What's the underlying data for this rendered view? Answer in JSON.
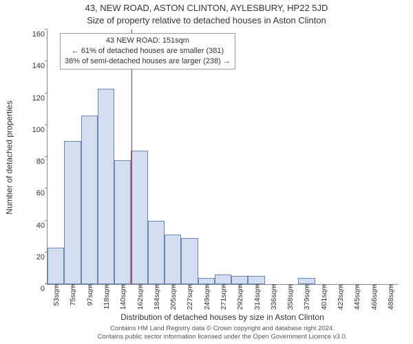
{
  "title": "43, NEW ROAD, ASTON CLINTON, AYLESBURY, HP22 5JD",
  "subtitle": "Size of property relative to detached houses in Aston Clinton",
  "chart": {
    "type": "histogram",
    "y_axis_label": "Number of detached properties",
    "x_axis_label": "Distribution of detached houses by size in Aston Clinton",
    "ylim": [
      0,
      160
    ],
    "ytick_step": 20,
    "bar_fill": "#d3def0",
    "bar_stroke": "#6a86b8",
    "marker_color": "#d62728",
    "marker_value": 151,
    "x_min": 42,
    "x_max": 499,
    "categories": [
      "53sqm",
      "75sqm",
      "97sqm",
      "118sqm",
      "140sqm",
      "162sqm",
      "184sqm",
      "205sqm",
      "227sqm",
      "249sqm",
      "271sqm",
      "292sqm",
      "314sqm",
      "336sqm",
      "358sqm",
      "379sqm",
      "401sqm",
      "423sqm",
      "445sqm",
      "466sqm",
      "488sqm"
    ],
    "values": [
      23,
      90,
      106,
      123,
      78,
      84,
      40,
      31,
      29,
      4,
      6,
      5,
      5,
      0,
      0,
      4,
      0,
      0,
      0,
      0,
      0
    ]
  },
  "info_box": {
    "line1": "43 NEW ROAD: 151sqm",
    "line2": "← 61% of detached houses are smaller (381)",
    "line3": "38% of semi-detached houses are larger (238) →"
  },
  "footer": {
    "line1": "Contains HM Land Registry data © Crown copyright and database right 2024.",
    "line2": "Contains public sector information licensed under the Open Government Licence v3.0."
  }
}
